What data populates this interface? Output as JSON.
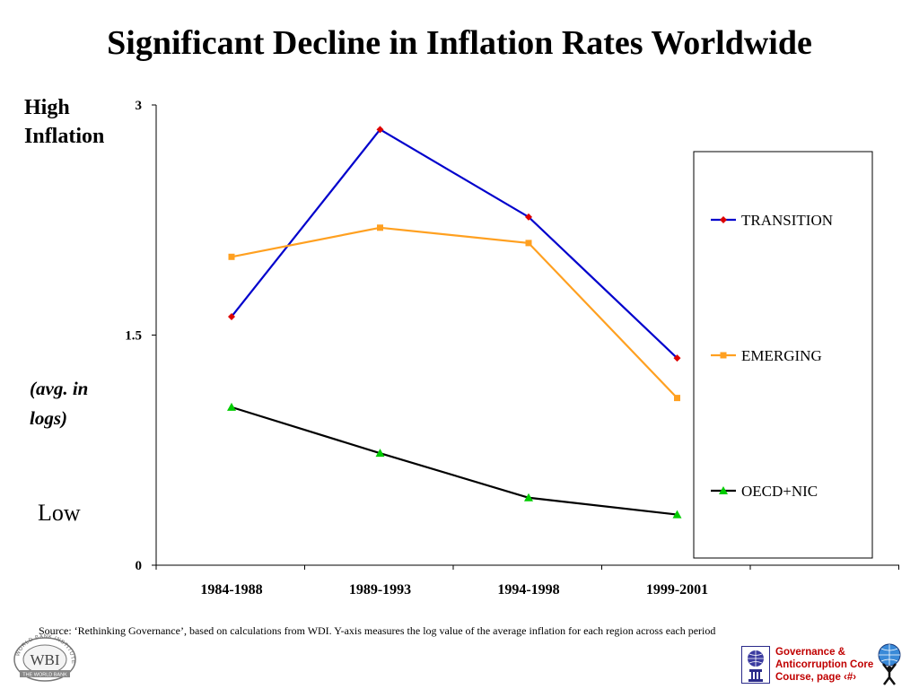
{
  "page": {
    "title": "Significant Decline in Inflation Rates Worldwide",
    "high_label_1": "High",
    "high_label_2": "Inflation",
    "avg_label_1": "(avg. in",
    "avg_label_2": "logs)",
    "low_label": "Low",
    "source": "Source:  ‘Rethinking Governance’, based on calculations from WDI.  Y-axis measures the log value of the average inflation for each region across each period",
    "footer_1": "Governance &",
    "footer_2": "Anticorruption Core",
    "footer_3": "Course, page ‹#›",
    "wbi_logo_text": "WBI",
    "wbi_ring_text": "WORLD BANK INSTITUTE",
    "wbi_sub_text": "THE WORLD BANK"
  },
  "chart_data": {
    "type": "line",
    "categories": [
      "1984-1988",
      "1989-1993",
      "1994-1998",
      "1999-2001"
    ],
    "y_ticks": [
      "0",
      "1.5",
      "3"
    ],
    "ylim": [
      0,
      3
    ],
    "series": [
      {
        "name": "TRANSITION",
        "color": "#0000cc",
        "marker": "diamond",
        "marker_color": "#dd0000",
        "values": [
          1.62,
          2.84,
          2.27,
          1.35
        ]
      },
      {
        "name": "EMERGING",
        "color": "#ffa020",
        "marker": "square",
        "marker_color": "#ffa020",
        "values": [
          2.01,
          2.2,
          2.1,
          1.09
        ]
      },
      {
        "name": "OECD+NIC",
        "color": "#000000",
        "marker": "triangle",
        "marker_color": "#00cc00",
        "values": [
          1.03,
          0.73,
          0.44,
          0.33
        ]
      }
    ],
    "legend": "right"
  }
}
